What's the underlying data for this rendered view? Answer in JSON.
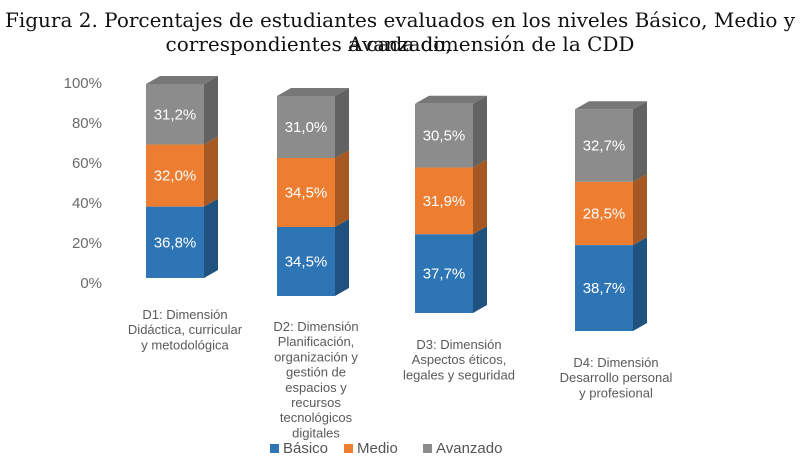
{
  "chart_data": {
    "type": "bar",
    "stacked": true,
    "three_d": true,
    "title": "Figura 2. Porcentajes de estudiantes evaluados en los niveles Básico, Medio y Avanzado,",
    "subtitle": "correspondientes a cada dimensión de la CDD",
    "ylim": [
      0,
      100
    ],
    "yticks": [
      "0%",
      "20%",
      "40%",
      "60%",
      "80%",
      "100%"
    ],
    "categories": [
      [
        "D1: Dimensión",
        "Didáctica, curricular",
        "y metodológica"
      ],
      [
        "D2: Dimensión",
        "Planificación,",
        "organización y",
        "gestión de",
        "espacios y",
        "recursos",
        "tecnológicos",
        "digitales"
      ],
      [
        "D3: Dimensión",
        "Aspectos éticos,",
        "legales y seguridad"
      ],
      [
        "D4: Dimensión",
        "Desarrollo personal",
        "y profesional"
      ]
    ],
    "series": [
      {
        "name": "Básico",
        "values": [
          36.8,
          34.5,
          37.7,
          38.7
        ],
        "labels": [
          "36,8%",
          "34,5%",
          "37,7%",
          "38,7%"
        ],
        "color": "#2e75b6"
      },
      {
        "name": "Medio",
        "values": [
          32.0,
          34.5,
          31.9,
          28.5
        ],
        "labels": [
          "32,0%",
          "34,5%",
          "31,9%",
          "28,5%"
        ],
        "color": "#ed7d31"
      },
      {
        "name": "Avanzado",
        "values": [
          31.2,
          31.0,
          30.5,
          32.7
        ],
        "labels": [
          "31,2%",
          "31,0%",
          "30,5%",
          "32,7%"
        ],
        "color": "#8c8c8c"
      }
    ],
    "legend_position": "bottom",
    "grid": false
  }
}
